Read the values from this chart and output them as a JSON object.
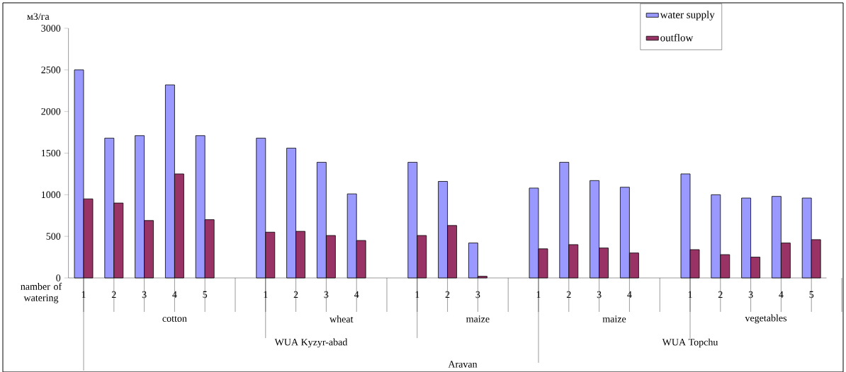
{
  "chart_data": {
    "type": "bar",
    "ylabel": "м3/га",
    "categories": [
      "1",
      "2",
      "3",
      "4",
      "5",
      null,
      "1",
      "2",
      "3",
      "4",
      null,
      "1",
      "2",
      "3",
      null,
      "1",
      "2",
      "3",
      "4",
      null,
      "1",
      "2",
      "3",
      "4",
      "5"
    ],
    "series": [
      {
        "name": "water supply",
        "color": "#9999ff",
        "values": [
          2500,
          1680,
          1710,
          2320,
          1710,
          null,
          1680,
          1560,
          1390,
          1010,
          null,
          1390,
          1160,
          420,
          null,
          1080,
          1390,
          1170,
          1090,
          null,
          1250,
          1000,
          960,
          980,
          960
        ]
      },
      {
        "name": "outflow",
        "color": "#993366",
        "values": [
          950,
          900,
          690,
          1250,
          700,
          null,
          550,
          560,
          510,
          450,
          null,
          510,
          630,
          20,
          null,
          350,
          400,
          360,
          300,
          null,
          340,
          280,
          250,
          420,
          460
        ]
      }
    ],
    "ylim": [
      0,
      3000
    ],
    "yticks": [
      0,
      500,
      1000,
      1500,
      2000,
      2500,
      3000
    ],
    "grid": false,
    "legend": "top right",
    "annotations": [
      "namber of watering",
      "cotton",
      "wheat",
      "maize",
      "maize",
      "vegetables",
      "WUA Kyzyr-abad",
      "WUA Topchu",
      "Aravan"
    ]
  }
}
